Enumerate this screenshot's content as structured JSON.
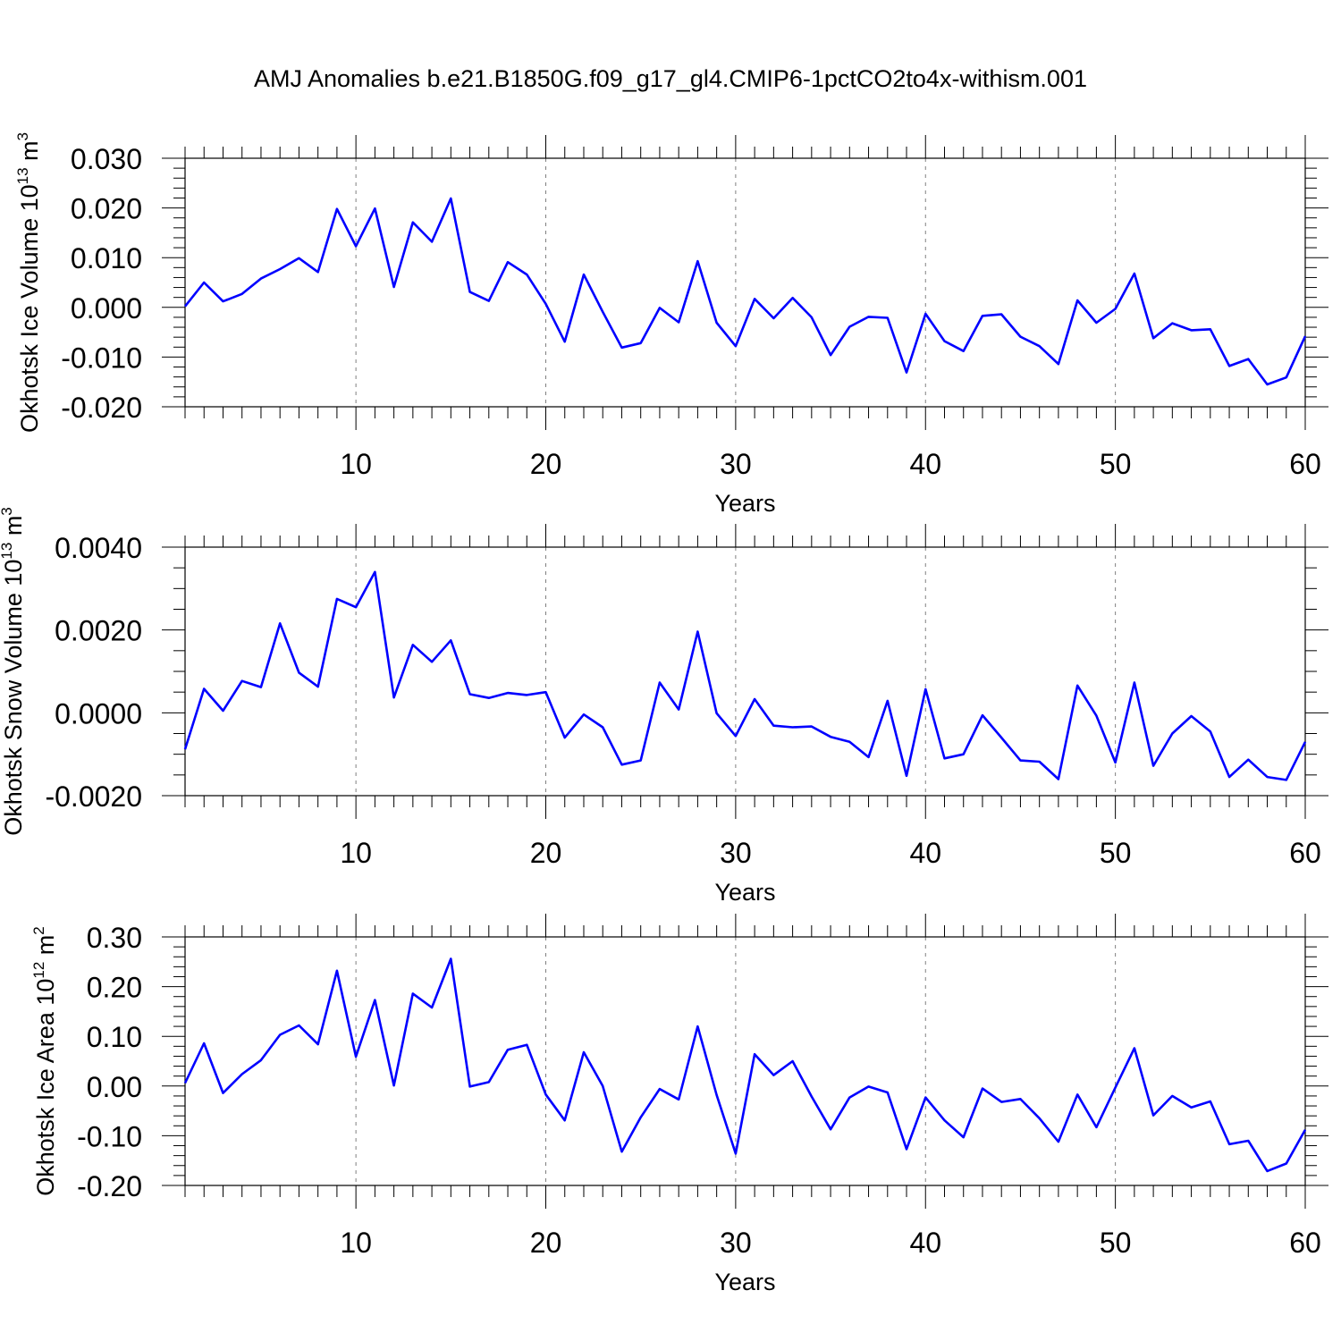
{
  "title": "AMJ Anomalies b.e21.B1850G.f09_g17_gl4.CMIP6-1pctCO2to4x-withism.001",
  "colors": {
    "series": "#0000ff",
    "axis": "#000000",
    "grid": "#808080"
  },
  "chart_data": [
    {
      "type": "line",
      "title": "",
      "xlabel": "Years",
      "ylabel": "Okhotsk Ice Volume 10",
      "ylabel_unit_exp": "13",
      "ylabel_unit": "m",
      "ylabel_unit_pow": "3",
      "xlim": [
        1,
        60
      ],
      "ylim": [
        -0.02,
        0.03
      ],
      "xticks": [
        10,
        20,
        30,
        40,
        50,
        60
      ],
      "yticks": [
        -0.02,
        -0.01,
        0.0,
        0.01,
        0.02,
        0.03
      ],
      "ytick_labels": [
        "-0.020",
        "-0.010",
        "0.000",
        "0.010",
        "0.020",
        "0.030"
      ],
      "y_minor_step": 0.002,
      "grid": "vertical dashed at major x ticks",
      "x": [
        1,
        2,
        3,
        4,
        5,
        6,
        7,
        8,
        9,
        10,
        11,
        12,
        13,
        14,
        15,
        16,
        17,
        18,
        19,
        20,
        21,
        22,
        23,
        24,
        25,
        26,
        27,
        28,
        29,
        30,
        31,
        32,
        33,
        34,
        35,
        36,
        37,
        38,
        39,
        40,
        41,
        42,
        43,
        44,
        45,
        46,
        47,
        48,
        49,
        50,
        51,
        52,
        53,
        54,
        55,
        56,
        57,
        58,
        59,
        60
      ],
      "series": [
        {
          "values": [
            0.0002,
            0.005,
            0.0012,
            0.0027,
            0.0058,
            0.0077,
            0.0099,
            0.0071,
            0.0198,
            0.0123,
            0.0199,
            0.0041,
            0.0171,
            0.0132,
            0.0219,
            0.0031,
            0.0013,
            0.0091,
            0.0066,
            0.0007,
            -0.0069,
            0.0066,
            -0.0009,
            -0.0081,
            -0.0072,
            -0.0001,
            -0.003,
            0.0093,
            -0.0031,
            -0.0078,
            0.0017,
            -0.0022,
            0.0019,
            -0.002,
            -0.0096,
            -0.0039,
            -0.0019,
            -0.0021,
            -0.0131,
            -0.0013,
            -0.0068,
            -0.0088,
            -0.0017,
            -0.0014,
            -0.0059,
            -0.0078,
            -0.0114,
            0.0014,
            -0.0031,
            -0.0003,
            0.0068,
            -0.0062,
            -0.0032,
            -0.0046,
            -0.0044,
            -0.0118,
            -0.0104,
            -0.0155,
            -0.0141,
            -0.0058
          ]
        }
      ]
    },
    {
      "type": "line",
      "title": "",
      "xlabel": "Years",
      "ylabel": "Okhotsk Snow Volume 10",
      "ylabel_unit_exp": "13",
      "ylabel_unit": "m",
      "ylabel_unit_pow": "3",
      "xlim": [
        1,
        60
      ],
      "ylim": [
        -0.002,
        0.004
      ],
      "xticks": [
        10,
        20,
        30,
        40,
        50,
        60
      ],
      "yticks": [
        -0.002,
        0.0,
        0.002,
        0.004
      ],
      "ytick_labels": [
        "-0.0020",
        "0.0000",
        "0.0020",
        "0.0040"
      ],
      "y_minor_step": 0.0005,
      "grid": "vertical dashed at major x ticks",
      "x": [
        1,
        2,
        3,
        4,
        5,
        6,
        7,
        8,
        9,
        10,
        11,
        12,
        13,
        14,
        15,
        16,
        17,
        18,
        19,
        20,
        21,
        22,
        23,
        24,
        25,
        26,
        27,
        28,
        29,
        30,
        31,
        32,
        33,
        34,
        35,
        36,
        37,
        38,
        39,
        40,
        41,
        42,
        43,
        44,
        45,
        46,
        47,
        48,
        49,
        50,
        51,
        52,
        53,
        54,
        55,
        56,
        57,
        58,
        59,
        60
      ],
      "series": [
        {
          "values": [
            -0.00088,
            0.00058,
            5e-05,
            0.00077,
            0.00062,
            0.00216,
            0.00097,
            0.00063,
            0.00275,
            0.00255,
            0.0034,
            0.00037,
            0.00164,
            0.00123,
            0.00175,
            0.00045,
            0.00036,
            0.00048,
            0.00043,
            0.0005,
            -0.0006,
            -4e-05,
            -0.00035,
            -0.00125,
            -0.00115,
            0.00073,
            8e-05,
            0.00196,
            -1e-05,
            -0.00056,
            0.00033,
            -0.00031,
            -0.00035,
            -0.00033,
            -0.00058,
            -0.0007,
            -0.00107,
            0.00029,
            -0.00152,
            0.00057,
            -0.0011,
            -0.001,
            -6e-05,
            -0.0006,
            -0.00115,
            -0.00118,
            -0.0016,
            0.00066,
            -7e-05,
            -0.0012,
            0.00073,
            -0.00128,
            -0.0005,
            -8e-05,
            -0.00045,
            -0.00155,
            -0.00113,
            -0.00155,
            -0.00162,
            -0.0007
          ]
        }
      ]
    },
    {
      "type": "line",
      "title": "",
      "xlabel": "Years",
      "ylabel": "Okhotsk Ice Area 10",
      "ylabel_unit_exp": "12",
      "ylabel_unit": "m",
      "ylabel_unit_pow": "2",
      "xlim": [
        1,
        60
      ],
      "ylim": [
        -0.2,
        0.3
      ],
      "xticks": [
        10,
        20,
        30,
        40,
        50,
        60
      ],
      "yticks": [
        -0.2,
        -0.1,
        0.0,
        0.1,
        0.2,
        0.3
      ],
      "ytick_labels": [
        "-0.20",
        "-0.10",
        "0.00",
        "0.10",
        "0.20",
        "0.30"
      ],
      "y_minor_step": 0.02,
      "grid": "vertical dashed at major x ticks",
      "x": [
        1,
        2,
        3,
        4,
        5,
        6,
        7,
        8,
        9,
        10,
        11,
        12,
        13,
        14,
        15,
        16,
        17,
        18,
        19,
        20,
        21,
        22,
        23,
        24,
        25,
        26,
        27,
        28,
        29,
        30,
        31,
        32,
        33,
        34,
        35,
        36,
        37,
        38,
        39,
        40,
        41,
        42,
        43,
        44,
        45,
        46,
        47,
        48,
        49,
        50,
        51,
        52,
        53,
        54,
        55,
        56,
        57,
        58,
        59,
        60
      ],
      "series": [
        {
          "values": [
            0.006,
            0.086,
            -0.014,
            0.024,
            0.052,
            0.103,
            0.122,
            0.084,
            0.232,
            0.059,
            0.173,
            0.001,
            0.186,
            0.158,
            0.256,
            -0.001,
            0.008,
            0.073,
            0.083,
            -0.017,
            -0.069,
            0.068,
            0.0,
            -0.132,
            -0.063,
            -0.006,
            -0.027,
            0.12,
            -0.018,
            -0.136,
            0.064,
            0.022,
            0.05,
            -0.021,
            -0.087,
            -0.023,
            -0.001,
            -0.013,
            -0.127,
            -0.023,
            -0.069,
            -0.103,
            -0.005,
            -0.032,
            -0.026,
            -0.065,
            -0.112,
            -0.017,
            -0.083,
            -0.003,
            0.076,
            -0.059,
            -0.02,
            -0.043,
            -0.031,
            -0.117,
            -0.11,
            -0.171,
            -0.156,
            -0.088
          ]
        }
      ]
    }
  ]
}
